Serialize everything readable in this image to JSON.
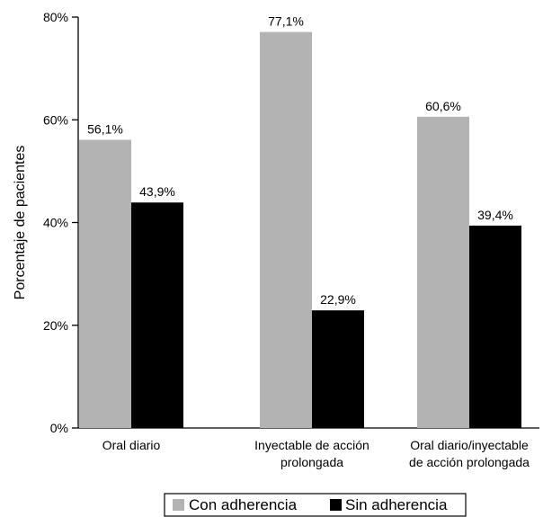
{
  "chart_data": {
    "type": "bar",
    "title": "",
    "xlabel": "",
    "ylabel": "Porcentaje de pacientes",
    "ylim": [
      0,
      80
    ],
    "yticks": [
      {
        "value": 0,
        "label": "0%"
      },
      {
        "value": 20,
        "label": "20%"
      },
      {
        "value": 40,
        "label": "40%"
      },
      {
        "value": 60,
        "label": "60%"
      },
      {
        "value": 80,
        "label": "80%"
      }
    ],
    "grid": false,
    "legend_position": "bottom-center",
    "categories": [
      [
        "Oral diario"
      ],
      [
        "Inyectable de acción",
        "prolongada"
      ],
      [
        "Oral diario/inyectable",
        "de acción prolongada"
      ]
    ],
    "series": [
      {
        "name": "Con adherencia",
        "color": "#b3b3b3",
        "values": [
          56.1,
          77.1,
          60.6
        ],
        "labels": [
          "56,1%",
          "77,1%",
          "60,6%"
        ]
      },
      {
        "name": "Sin adherencia",
        "color": "#000000",
        "values": [
          43.9,
          22.9,
          39.4
        ],
        "labels": [
          "43,9%",
          "22,9%",
          "39,4%"
        ]
      }
    ]
  }
}
